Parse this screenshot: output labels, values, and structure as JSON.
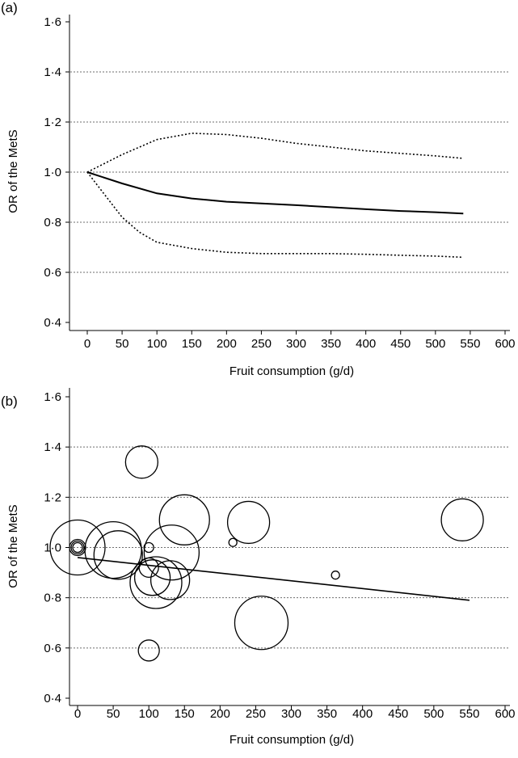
{
  "chart_data": [
    {
      "panel": "(a)",
      "type": "line",
      "xlabel": "Fruit consumption (g/d)",
      "ylabel": "OR of the MetS",
      "xlim": [
        0,
        600
      ],
      "ylim": [
        0.4,
        1.6
      ],
      "x_ticks": [
        0,
        50,
        100,
        150,
        200,
        250,
        300,
        350,
        400,
        450,
        500,
        550,
        600
      ],
      "y_ticks": [
        0.4,
        0.6,
        0.8,
        1.0,
        1.2,
        1.4,
        1.6
      ],
      "y_tick_labels": [
        "0·4",
        "0·6",
        "0·8",
        "1·0",
        "1·2",
        "1·4",
        "1·6"
      ],
      "grid_y": [
        0.6,
        0.8,
        1.0,
        1.2,
        1.4
      ],
      "series": [
        {
          "name": "upper 95% CI",
          "style": "dotted",
          "x": [
            0,
            50,
            100,
            150,
            200,
            250,
            300,
            350,
            400,
            450,
            500,
            540
          ],
          "y": [
            1.0,
            1.07,
            1.13,
            1.155,
            1.15,
            1.135,
            1.115,
            1.1,
            1.085,
            1.075,
            1.065,
            1.055
          ]
        },
        {
          "name": "OR",
          "style": "solid",
          "x": [
            0,
            50,
            100,
            150,
            200,
            250,
            300,
            350,
            400,
            450,
            500,
            540
          ],
          "y": [
            1.0,
            0.955,
            0.915,
            0.895,
            0.882,
            0.875,
            0.868,
            0.86,
            0.852,
            0.845,
            0.84,
            0.835
          ]
        },
        {
          "name": "lower 95% CI",
          "style": "dotted",
          "x": [
            0,
            25,
            50,
            75,
            100,
            150,
            200,
            250,
            300,
            350,
            400,
            450,
            500,
            540
          ],
          "y": [
            1.0,
            0.91,
            0.82,
            0.76,
            0.72,
            0.695,
            0.68,
            0.675,
            0.675,
            0.675,
            0.672,
            0.668,
            0.665,
            0.66
          ]
        }
      ]
    },
    {
      "panel": "(b)",
      "type": "scatter",
      "xlabel": "Fruit consumption (g/d)",
      "ylabel": "OR of the MetS",
      "xlim": [
        -10,
        600
      ],
      "ylim": [
        0.4,
        1.6
      ],
      "x_ticks": [
        0,
        50,
        100,
        150,
        200,
        250,
        300,
        350,
        400,
        450,
        500,
        550,
        600
      ],
      "y_ticks": [
        0.4,
        0.6,
        0.8,
        1.0,
        1.2,
        1.4,
        1.6
      ],
      "y_tick_labels": [
        "0·4",
        "0·6",
        "0·8",
        "1·0",
        "1·2",
        "1·4",
        "1·6"
      ],
      "grid_y": [
        0.6,
        0.8,
        1.0,
        1.2,
        1.4
      ],
      "points": [
        {
          "x": 0,
          "y": 1.0,
          "weight": 34
        },
        {
          "x": 0,
          "y": 1.0,
          "weight": 10
        },
        {
          "x": 0,
          "y": 1.0,
          "weight": 8
        },
        {
          "x": 0,
          "y": 1.0,
          "weight": 6
        },
        {
          "x": 50,
          "y": 0.99,
          "weight": 35
        },
        {
          "x": 57,
          "y": 0.97,
          "weight": 30
        },
        {
          "x": 90,
          "y": 1.34,
          "weight": 20
        },
        {
          "x": 100,
          "y": 1.0,
          "weight": 6
        },
        {
          "x": 100,
          "y": 0.92,
          "weight": 12
        },
        {
          "x": 100,
          "y": 0.59,
          "weight": 13
        },
        {
          "x": 105,
          "y": 0.88,
          "weight": 22
        },
        {
          "x": 110,
          "y": 0.86,
          "weight": 32
        },
        {
          "x": 130,
          "y": 0.87,
          "weight": 24
        },
        {
          "x": 132,
          "y": 0.98,
          "weight": 34
        },
        {
          "x": 150,
          "y": 1.11,
          "weight": 31
        },
        {
          "x": 218,
          "y": 1.02,
          "weight": 5
        },
        {
          "x": 240,
          "y": 1.1,
          "weight": 26
        },
        {
          "x": 258,
          "y": 0.7,
          "weight": 33
        },
        {
          "x": 362,
          "y": 0.89,
          "weight": 5
        },
        {
          "x": 540,
          "y": 1.11,
          "weight": 26
        }
      ],
      "fit_line": {
        "x": [
          0,
          550
        ],
        "y": [
          0.96,
          0.79
        ]
      }
    }
  ]
}
